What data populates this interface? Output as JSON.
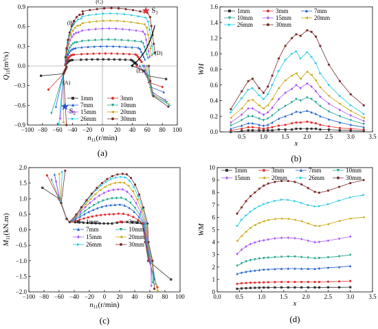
{
  "colors": [
    "#333333",
    "#e03030",
    "#1f5fd0",
    "#19a38a",
    "#a855f7",
    "#c8a000",
    "#19c8e0",
    "#7a2a2a"
  ],
  "legend": [
    "1mm",
    "3mm",
    "7mm",
    "10mm",
    "15mm",
    "20mm",
    "26mm",
    "30mm"
  ],
  "chart_data": [
    {
      "id": "a",
      "type": "line",
      "caption": "(a)",
      "xlabel": "n11(r/min)",
      "ylabel": "Q11(m³/s)",
      "xlim": [
        -100,
        100
      ],
      "ylim": [
        -0.9,
        0.9
      ],
      "xticks": [
        "−100",
        "−80",
        "−60",
        "−40",
        "−20",
        "0",
        "20",
        "40",
        "60",
        "80",
        "100"
      ],
      "yticks": [
        "−0.9",
        "−0.6",
        "−0.3",
        "0.0",
        "0.3",
        "0.6",
        "0.9"
      ],
      "xtick_values": [
        -100,
        -80,
        -60,
        -40,
        -20,
        0,
        20,
        40,
        60,
        80,
        100
      ],
      "ytick_values": [
        -0.9,
        -0.6,
        -0.3,
        0,
        0.3,
        0.6,
        0.9
      ],
      "annotations": [
        "(A)",
        "(B)",
        "(C)",
        "(D)",
        "(E)"
      ],
      "s1": {
        "label": "S",
        "sub": "1",
        "x": 58,
        "y": 0.84
      },
      "s2": {
        "label": "S",
        "sub": "2",
        "x": -50,
        "y": -0.62
      },
      "series": [
        {
          "name": "1mm",
          "left": [
            -50,
            0.09
          ],
          "right": [
            46,
            0.02
          ],
          "tip": [
            -82,
            -0.15
          ],
          "peak": 0.1,
          "cut": [
            60,
            -0.15
          ],
          "dip": [
            85,
            -0.2
          ]
        },
        {
          "name": "3mm",
          "left": [
            -50,
            0.17
          ],
          "right": [
            52,
            0.06
          ],
          "tip": [
            -72,
            -0.36
          ],
          "peak": 0.19,
          "cut": [
            62,
            -0.25
          ],
          "dip": [
            80,
            -0.32
          ]
        },
        {
          "name": "7mm",
          "left": [
            -49,
            0.28
          ],
          "right": [
            56,
            0.1
          ],
          "tip": [
            -62,
            -0.62
          ],
          "peak": 0.3,
          "cut": [
            64,
            -0.32
          ],
          "dip": [
            82,
            -0.4
          ]
        },
        {
          "name": "10mm",
          "left": [
            -48,
            0.38
          ],
          "right": [
            60,
            0.12
          ],
          "tip": [
            -68,
            -0.72
          ],
          "peak": 0.4,
          "cut": [
            65,
            -0.38
          ],
          "dip": [
            86,
            -0.55
          ]
        },
        {
          "name": "15mm",
          "left": [
            -47,
            0.5
          ],
          "right": [
            62,
            0.14
          ],
          "tip": [
            -56,
            -0.8
          ],
          "peak": 0.57,
          "cut": [
            66,
            -0.4
          ],
          "dip": [
            84,
            -0.52
          ]
        },
        {
          "name": "20mm",
          "left": [
            -46,
            0.62
          ],
          "right": [
            64,
            0.16
          ],
          "tip": [
            -52,
            -0.86
          ],
          "peak": 0.69,
          "cut": [
            66,
            -0.42
          ],
          "dip": [
            88,
            -0.58
          ]
        },
        {
          "name": "26mm",
          "left": [
            -45,
            0.74
          ],
          "right": [
            66,
            0.18
          ],
          "tip": [
            -58,
            -0.88
          ],
          "peak": 0.8,
          "cut": [
            67,
            -0.44
          ],
          "dip": [
            90,
            -0.6
          ]
        },
        {
          "name": "30mm",
          "left": [
            -44,
            0.82
          ],
          "right": [
            68,
            0.2
          ],
          "tip": [
            -48,
            -0.9
          ],
          "peak": 0.88,
          "cut": [
            68,
            -0.46
          ],
          "dip": [
            88,
            -0.62
          ]
        }
      ]
    },
    {
      "id": "b",
      "type": "line",
      "caption": "(b)",
      "xlabel": "x",
      "ylabel": "WH",
      "xlim": [
        0,
        3.5
      ],
      "ylim": [
        0,
        1.6
      ],
      "xticks": [
        "0.5",
        "1.0",
        "1.5",
        "2.0",
        "2.5",
        "3.0",
        "3.5"
      ],
      "xtick_values": [
        0.5,
        1,
        1.5,
        2,
        2.5,
        3,
        3.5
      ],
      "yticks": [
        "0.0",
        "0.2",
        "0.4",
        "0.6",
        "0.8",
        "1.0",
        "1.2",
        "1.4",
        "1.6"
      ],
      "ytick_values": [
        0,
        0.2,
        0.4,
        0.6,
        0.8,
        1,
        1.2,
        1.4,
        1.6
      ],
      "x": [
        0.25,
        0.5,
        0.65,
        0.75,
        0.9,
        1.0,
        1.1,
        1.2,
        1.35,
        1.5,
        1.65,
        1.75,
        1.85,
        2.0,
        2.1,
        2.2,
        2.3,
        2.5,
        2.75,
        3.0,
        3.3
      ],
      "series": [
        {
          "name": "1mm",
          "values": [
            0.0,
            0.01,
            0.02,
            0.02,
            0.02,
            0.02,
            0.02,
            0.02,
            0.03,
            0.03,
            0.03,
            0.04,
            0.04,
            0.04,
            0.04,
            0.04,
            0.03,
            0.03,
            0.02,
            0.02,
            0.01
          ]
        },
        {
          "name": "3mm",
          "values": [
            0.02,
            0.04,
            0.06,
            0.06,
            0.05,
            0.04,
            0.05,
            0.06,
            0.08,
            0.09,
            0.11,
            0.12,
            0.12,
            0.13,
            0.12,
            0.11,
            0.09,
            0.07,
            0.05,
            0.04,
            0.03
          ]
        },
        {
          "name": "7mm",
          "values": [
            0.04,
            0.08,
            0.11,
            0.11,
            0.09,
            0.08,
            0.09,
            0.12,
            0.17,
            0.2,
            0.23,
            0.26,
            0.25,
            0.27,
            0.25,
            0.23,
            0.2,
            0.16,
            0.12,
            0.09,
            0.06
          ]
        },
        {
          "name": "10mm",
          "values": [
            0.08,
            0.15,
            0.2,
            0.2,
            0.17,
            0.15,
            0.17,
            0.21,
            0.28,
            0.33,
            0.38,
            0.42,
            0.4,
            0.44,
            0.42,
            0.38,
            0.33,
            0.26,
            0.2,
            0.15,
            0.1
          ]
        },
        {
          "name": "15mm",
          "values": [
            0.12,
            0.22,
            0.3,
            0.3,
            0.25,
            0.22,
            0.25,
            0.31,
            0.42,
            0.5,
            0.55,
            0.6,
            0.56,
            0.62,
            0.58,
            0.52,
            0.45,
            0.36,
            0.28,
            0.21,
            0.14
          ]
        },
        {
          "name": "20mm",
          "values": [
            0.18,
            0.3,
            0.4,
            0.41,
            0.34,
            0.3,
            0.34,
            0.42,
            0.56,
            0.66,
            0.72,
            0.75,
            0.68,
            0.77,
            0.73,
            0.66,
            0.57,
            0.46,
            0.36,
            0.27,
            0.18
          ]
        },
        {
          "name": "26mm",
          "values": [
            0.25,
            0.43,
            0.54,
            0.56,
            0.47,
            0.42,
            0.48,
            0.6,
            0.78,
            0.92,
            1.0,
            1.03,
            0.94,
            1.02,
            0.96,
            0.88,
            0.75,
            0.6,
            0.46,
            0.34,
            0.23
          ]
        },
        {
          "name": "30mm",
          "values": [
            0.29,
            0.52,
            0.65,
            0.68,
            0.56,
            0.5,
            0.58,
            0.72,
            0.94,
            1.1,
            1.2,
            1.25,
            1.23,
            1.3,
            1.28,
            1.22,
            1.1,
            0.86,
            0.65,
            0.48,
            0.34
          ]
        }
      ]
    },
    {
      "id": "c",
      "type": "line",
      "caption": "(c)",
      "xlabel": "n11(r/min)",
      "ylabel": "M11(kN.m)",
      "xlim": [
        -100,
        100
      ],
      "ylim": [
        -2.0,
        2.0
      ],
      "xticks": [
        "−100",
        "−80",
        "−60",
        "−40",
        "−20",
        "0",
        "20",
        "40",
        "60",
        "80",
        "100"
      ],
      "xtick_values": [
        -100,
        -80,
        -60,
        -40,
        -20,
        0,
        20,
        40,
        60,
        80,
        100
      ],
      "yticks": [
        "−2.0",
        "−1.5",
        "−1.0",
        "−0.5",
        "0.0",
        "0.5",
        "1.0",
        "1.5",
        "2.0"
      ],
      "ytick_values": [
        -2,
        -1.5,
        -1,
        -0.5,
        0,
        0.5,
        1,
        1.5,
        2
      ],
      "series": [
        {
          "name": "1mm",
          "tip": [
            -82,
            1.35
          ],
          "peak": 0.2,
          "end": [
            88,
            -1.6
          ]
        },
        {
          "name": "3mm",
          "tip": [
            -76,
            1.75
          ],
          "peak": 0.5,
          "end": [
            70,
            -1.85
          ]
        },
        {
          "name": "7mm",
          "tip": [
            -66,
            1.78
          ],
          "peak": 0.8,
          "end": [
            66,
            -1.6
          ]
        },
        {
          "name": "10mm",
          "tip": [
            -70,
            1.6
          ],
          "peak": 1.02,
          "end": [
            64,
            -1.7
          ]
        },
        {
          "name": "15mm",
          "tip": [
            -64,
            1.55
          ],
          "peak": 1.3,
          "end": [
            62,
            -1.8
          ]
        },
        {
          "name": "20mm",
          "tip": [
            -60,
            1.8
          ],
          "peak": 1.52,
          "end": [
            70,
            -1.95
          ]
        },
        {
          "name": "26mm",
          "tip": [
            -56,
            1.86
          ],
          "peak": 1.7,
          "end": [
            68,
            -1.75
          ]
        },
        {
          "name": "30mm",
          "tip": [
            -52,
            1.9
          ],
          "peak": 1.8,
          "end": [
            66,
            -1.9
          ]
        }
      ]
    },
    {
      "id": "d",
      "type": "line",
      "caption": "(d)",
      "xlabel": "x",
      "ylabel": "WM",
      "xlim": [
        0,
        3.5
      ],
      "ylim": [
        0,
        10
      ],
      "xticks": [
        "0.0",
        "0.5",
        "1.0",
        "1.5",
        "2.0",
        "2.5",
        "3.0",
        "3.5"
      ],
      "xtick_values": [
        0,
        0.5,
        1,
        1.5,
        2,
        2.5,
        3,
        3.5
      ],
      "yticks": [
        "0",
        "1",
        "2",
        "3",
        "4",
        "5",
        "6",
        "7",
        "8",
        "9",
        "10"
      ],
      "ytick_values": [
        0,
        1,
        2,
        3,
        4,
        5,
        6,
        7,
        8,
        9,
        10
      ],
      "x": [
        0.45,
        0.55,
        0.65,
        0.75,
        0.85,
        0.95,
        1.05,
        1.15,
        1.3,
        1.45,
        1.6,
        1.75,
        1.9,
        2.05,
        2.2,
        2.3,
        2.5,
        2.75,
        3.0,
        3.3
      ],
      "series": [
        {
          "name": "1mm",
          "values": [
            0.25,
            0.28,
            0.3,
            0.32,
            0.33,
            0.34,
            0.35,
            0.35,
            0.36,
            0.36,
            0.36,
            0.36,
            0.36,
            0.36,
            0.36,
            0.36,
            0.37,
            0.37,
            0.38,
            null
          ]
        },
        {
          "name": "3mm",
          "values": [
            0.65,
            0.7,
            0.72,
            0.74,
            0.75,
            0.76,
            0.77,
            0.78,
            0.79,
            0.8,
            0.8,
            0.8,
            0.8,
            0.8,
            0.8,
            0.8,
            0.82,
            0.84,
            0.88,
            null
          ]
        },
        {
          "name": "7mm",
          "values": [
            1.45,
            1.55,
            1.62,
            1.68,
            1.72,
            1.76,
            1.8,
            1.82,
            1.84,
            1.86,
            1.88,
            1.88,
            1.87,
            1.86,
            1.85,
            1.9,
            1.95,
            2.0,
            2.08,
            null
          ]
        },
        {
          "name": "10mm",
          "values": [
            2.1,
            2.3,
            2.45,
            2.55,
            2.62,
            2.68,
            2.72,
            2.75,
            2.8,
            2.82,
            2.84,
            2.84,
            2.8,
            2.76,
            2.7,
            2.72,
            2.78,
            2.86,
            2.98,
            null
          ]
        },
        {
          "name": "15mm",
          "values": [
            3.05,
            3.4,
            3.65,
            3.85,
            3.98,
            4.08,
            4.15,
            4.22,
            4.3,
            4.35,
            4.36,
            4.32,
            4.25,
            4.12,
            4.0,
            4.02,
            4.12,
            4.28,
            4.45,
            null
          ]
        },
        {
          "name": "20mm",
          "values": [
            4.1,
            4.5,
            4.85,
            5.15,
            5.38,
            5.55,
            5.68,
            5.78,
            5.86,
            5.9,
            5.88,
            5.8,
            5.68,
            5.5,
            5.32,
            5.3,
            5.45,
            5.7,
            5.9,
            6.0
          ]
        },
        {
          "name": "26mm",
          "values": [
            5.3,
            5.8,
            6.15,
            6.45,
            6.7,
            6.9,
            7.05,
            7.18,
            7.32,
            7.42,
            7.4,
            7.3,
            7.15,
            6.98,
            6.88,
            6.9,
            7.05,
            7.35,
            7.6,
            7.8
          ]
        },
        {
          "name": "30mm",
          "values": [
            6.3,
            6.8,
            7.3,
            7.7,
            8.0,
            8.3,
            8.55,
            8.72,
            8.85,
            8.92,
            8.92,
            8.85,
            8.65,
            8.35,
            8.05,
            7.98,
            8.15,
            8.45,
            8.75,
            9.0
          ]
        }
      ]
    }
  ]
}
